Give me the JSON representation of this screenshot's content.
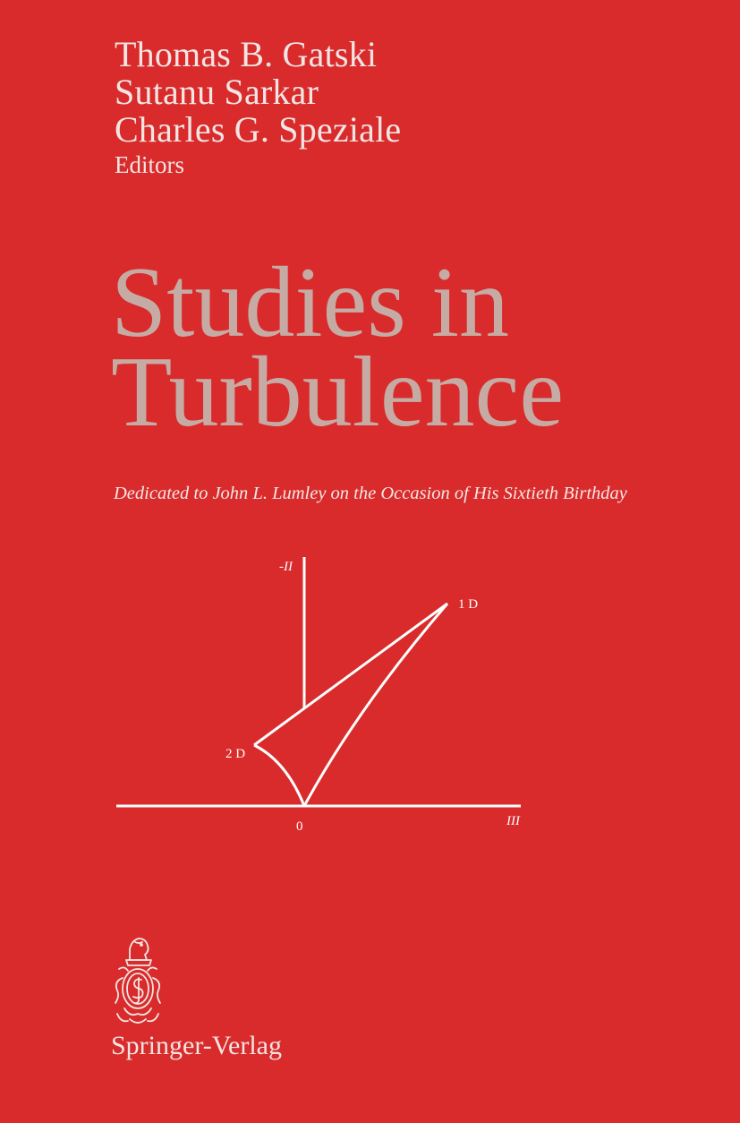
{
  "editors": {
    "names": [
      "Thomas B. Gatski",
      "Sutanu Sarkar",
      "Charles G. Speziale"
    ],
    "role": "Editors"
  },
  "title": {
    "line1": "Studies in",
    "line2": "Turbulence"
  },
  "dedication": "Dedicated to John L. Lumley on the Occasion of His Sixtieth Birthday",
  "diagram": {
    "y_axis_label": "-II",
    "x_axis_label": "III",
    "origin_label": "0",
    "point_1d_label": "1 D",
    "point_2d_label": "2 D"
  },
  "publisher": "Springer-Verlag",
  "colors": {
    "background": "#d92b2b",
    "title": "#c6aba5",
    "text": "#f1e5e3",
    "lines": "#ffffff"
  }
}
